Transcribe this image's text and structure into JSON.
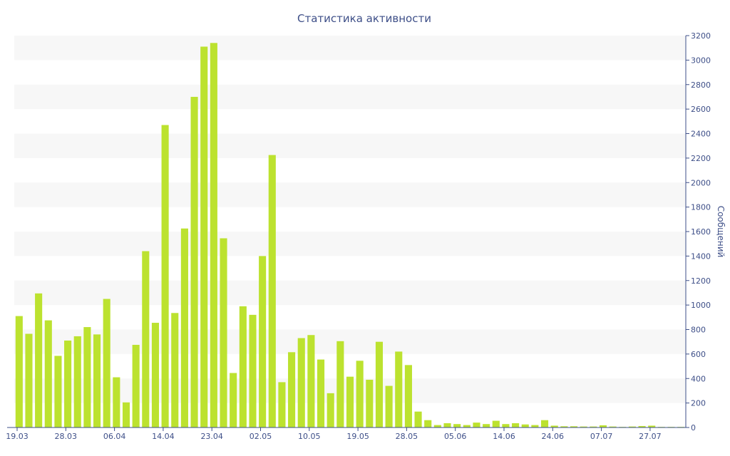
{
  "chart_data": {
    "type": "bar",
    "title": "Статистика активности",
    "ylabel": "Сообщений",
    "ylim": [
      0,
      3200
    ],
    "yticks": [
      0,
      200,
      400,
      600,
      800,
      1000,
      1200,
      1400,
      1600,
      1800,
      2000,
      2200,
      2400,
      2600,
      2800,
      3000,
      3200
    ],
    "x_tick_labels": [
      "19.03",
      "28.03",
      "06.04",
      "14.04",
      "23.04",
      "02.05",
      "10.05",
      "19.05",
      "28.05",
      "05.06",
      "14.06",
      "24.06",
      "07.07",
      "27.07"
    ],
    "values": [
      910,
      765,
      1095,
      875,
      585,
      710,
      745,
      820,
      760,
      1050,
      410,
      205,
      675,
      1440,
      855,
      2470,
      935,
      1625,
      2700,
      3110,
      3140,
      1545,
      445,
      990,
      920,
      1400,
      2225,
      370,
      615,
      730,
      755,
      555,
      280,
      705,
      415,
      545,
      390,
      700,
      340,
      620,
      510,
      130,
      60,
      20,
      35,
      28,
      20,
      40,
      28,
      55,
      28,
      35,
      25,
      20,
      60,
      15,
      10,
      10,
      8,
      8,
      18,
      8,
      5,
      8,
      12,
      15,
      5,
      5,
      5
    ],
    "bar_color": "#bce22f",
    "grid_band_color": "#f7f7f7",
    "axis_color": "#3e4f88",
    "grid": true,
    "legend": "none",
    "yaxis_side": "right"
  }
}
